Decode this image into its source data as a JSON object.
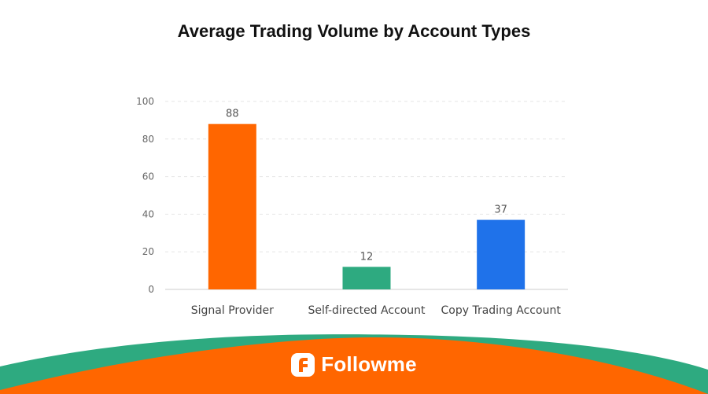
{
  "chart_data": {
    "type": "bar",
    "title": "Average Trading Volume by Account Types",
    "categories": [
      "Signal Provider",
      "Self-directed Account",
      "Copy Trading Account"
    ],
    "values": [
      88,
      12,
      37
    ],
    "data_labels": [
      "88",
      "12",
      "37"
    ],
    "bar_colors": [
      "#ff6600",
      "#2eaa80",
      "#1f72ea"
    ],
    "ylim": [
      0,
      100
    ],
    "yticks": [
      0,
      20,
      40,
      60,
      80,
      100
    ],
    "ytick_labels": [
      "0",
      "20",
      "40",
      "60",
      "80",
      "100"
    ],
    "xlabel": "",
    "ylabel": "",
    "grid": true,
    "legend": "none"
  },
  "branding": {
    "name": "Followme",
    "icon": "followme-logo-icon",
    "colors": {
      "orange": "#ff6600",
      "green": "#2eaa80"
    }
  }
}
